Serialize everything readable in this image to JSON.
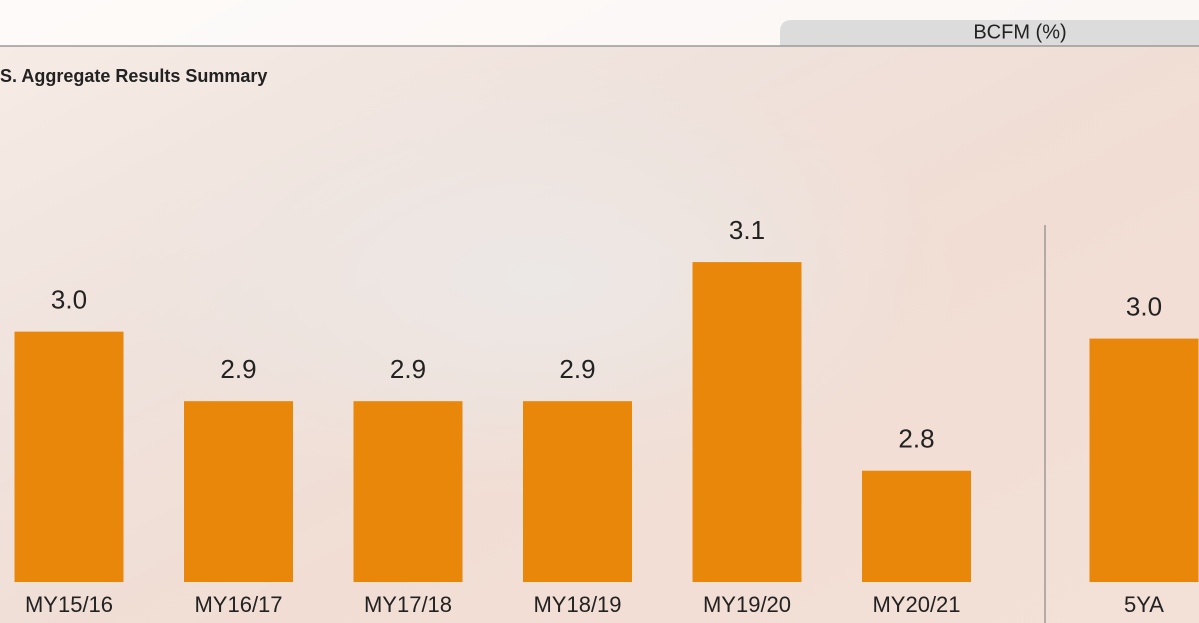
{
  "chart_data": {
    "type": "bar",
    "title": "S. Aggregate Results Summary",
    "unit_label": "BCFM (%)",
    "categories": [
      "MY15/16",
      "MY16/17",
      "MY17/18",
      "MY18/19",
      "MY19/20",
      "MY20/21",
      "5YA"
    ],
    "values": [
      3.0,
      2.9,
      2.9,
      2.9,
      3.1,
      2.8,
      2.99
    ],
    "value_labels": [
      "3.0",
      "2.9",
      "2.9",
      "2.9",
      "3.1",
      "2.8",
      "3.0"
    ],
    "color": "#e8870a",
    "ylim": [
      2.64,
      3.3
    ]
  }
}
